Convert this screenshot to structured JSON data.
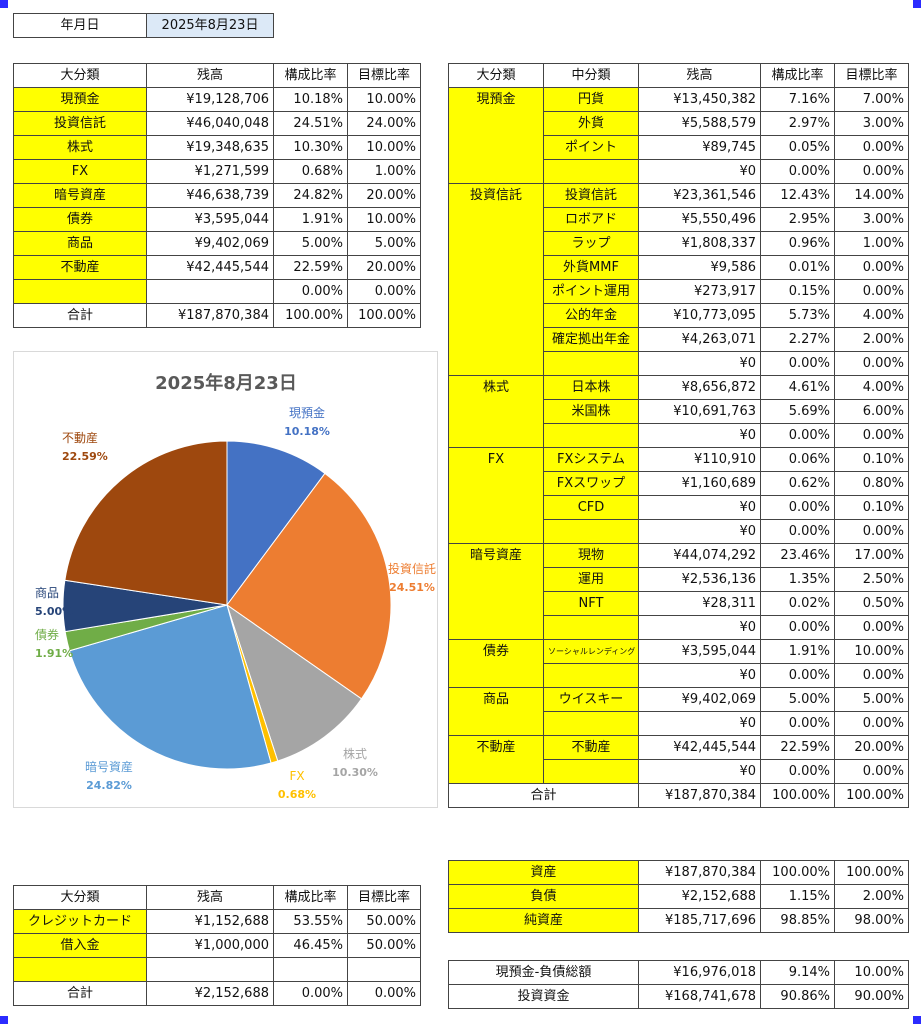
{
  "date_box": {
    "label": "年月日",
    "value": "2025年8月23日"
  },
  "asset_summary": {
    "headers": [
      "大分類",
      "残高",
      "構成比率",
      "目標比率"
    ],
    "rows": [
      [
        "現預金",
        "¥19,128,706",
        "10.18%",
        "10.00%"
      ],
      [
        "投資信託",
        "¥46,040,048",
        "24.51%",
        "24.00%"
      ],
      [
        "株式",
        "¥19,348,635",
        "10.30%",
        "10.00%"
      ],
      [
        "FX",
        "¥1,271,599",
        "0.68%",
        "1.00%"
      ],
      [
        "暗号資産",
        "¥46,638,739",
        "24.82%",
        "20.00%"
      ],
      [
        "債券",
        "¥3,595,044",
        "1.91%",
        "10.00%"
      ],
      [
        "商品",
        "¥9,402,069",
        "5.00%",
        "5.00%"
      ],
      [
        "不動産",
        "¥42,445,544",
        "22.59%",
        "20.00%"
      ],
      [
        "",
        "",
        "0.00%",
        "0.00%"
      ]
    ],
    "total": [
      "合計",
      "¥187,870,384",
      "100.00%",
      "100.00%"
    ]
  },
  "chart_data": {
    "type": "pie",
    "title": "2025年8月23日",
    "slices": [
      {
        "label": "現預金",
        "percent_label": "10.18%",
        "value": 10.18,
        "color": "#4472c4"
      },
      {
        "label": "投資信託",
        "percent_label": "24.51%",
        "value": 24.51,
        "color": "#ed7d31"
      },
      {
        "label": "株式",
        "percent_label": "10.30%",
        "value": 10.3,
        "color": "#a5a5a5"
      },
      {
        "label": "FX",
        "percent_label": "0.68%",
        "value": 0.68,
        "color": "#ffc000"
      },
      {
        "label": "暗号資産",
        "percent_label": "24.82%",
        "value": 24.82,
        "color": "#5b9bd5"
      },
      {
        "label": "債券",
        "percent_label": "1.91%",
        "value": 1.91,
        "color": "#70ad47"
      },
      {
        "label": "商品",
        "percent_label": "5.00%",
        "value": 5.0,
        "color": "#264478"
      },
      {
        "label": "不動産",
        "percent_label": "22.59%",
        "value": 22.59,
        "color": "#9e480e"
      }
    ]
  },
  "liability_summary": {
    "headers": [
      "大分類",
      "残高",
      "構成比率",
      "目標比率"
    ],
    "rows": [
      [
        "クレジットカード",
        "¥1,152,688",
        "53.55%",
        "50.00%"
      ],
      [
        "借入金",
        "¥1,000,000",
        "46.45%",
        "50.00%"
      ],
      [
        "",
        "",
        "",
        ""
      ]
    ],
    "total": [
      "合計",
      "¥2,152,688",
      "0.00%",
      "0.00%"
    ]
  },
  "detail": {
    "headers": [
      "大分類",
      "中分類",
      "残高",
      "構成比率",
      "目標比率"
    ],
    "groups": [
      {
        "name": "現預金",
        "rows": [
          [
            "円貨",
            "¥13,450,382",
            "7.16%",
            "7.00%"
          ],
          [
            "外貨",
            "¥5,588,579",
            "2.97%",
            "3.00%"
          ],
          [
            "ポイント",
            "¥89,745",
            "0.05%",
            "0.00%"
          ],
          [
            "",
            "¥0",
            "0.00%",
            "0.00%"
          ]
        ]
      },
      {
        "name": "投資信託",
        "rows": [
          [
            "投資信託",
            "¥23,361,546",
            "12.43%",
            "14.00%"
          ],
          [
            "ロボアド",
            "¥5,550,496",
            "2.95%",
            "3.00%"
          ],
          [
            "ラップ",
            "¥1,808,337",
            "0.96%",
            "1.00%"
          ],
          [
            "外貨MMF",
            "¥9,586",
            "0.01%",
            "0.00%"
          ],
          [
            "ポイント運用",
            "¥273,917",
            "0.15%",
            "0.00%"
          ],
          [
            "公的年金",
            "¥10,773,095",
            "5.73%",
            "4.00%"
          ],
          [
            "確定拠出年金",
            "¥4,263,071",
            "2.27%",
            "2.00%"
          ],
          [
            "",
            "¥0",
            "0.00%",
            "0.00%"
          ]
        ]
      },
      {
        "name": "株式",
        "rows": [
          [
            "日本株",
            "¥8,656,872",
            "4.61%",
            "4.00%"
          ],
          [
            "米国株",
            "¥10,691,763",
            "5.69%",
            "6.00%"
          ],
          [
            "",
            "¥0",
            "0.00%",
            "0.00%"
          ]
        ]
      },
      {
        "name": "FX",
        "rows": [
          [
            "FXシステム",
            "¥110,910",
            "0.06%",
            "0.10%"
          ],
          [
            "FXスワップ",
            "¥1,160,689",
            "0.62%",
            "0.80%"
          ],
          [
            "CFD",
            "¥0",
            "0.00%",
            "0.10%"
          ],
          [
            "",
            "¥0",
            "0.00%",
            "0.00%"
          ]
        ]
      },
      {
        "name": "暗号資産",
        "rows": [
          [
            "現物",
            "¥44,074,292",
            "23.46%",
            "17.00%"
          ],
          [
            "運用",
            "¥2,536,136",
            "1.35%",
            "2.50%"
          ],
          [
            "NFT",
            "¥28,311",
            "0.02%",
            "0.50%"
          ],
          [
            "",
            "¥0",
            "0.00%",
            "0.00%"
          ]
        ]
      },
      {
        "name": "債券",
        "rows": [
          [
            "ソーシャルレンディング",
            "¥3,595,044",
            "1.91%",
            "10.00%"
          ],
          [
            "",
            "¥0",
            "0.00%",
            "0.00%"
          ]
        ]
      },
      {
        "name": "商品",
        "rows": [
          [
            "ウイスキー",
            "¥9,402,069",
            "5.00%",
            "5.00%"
          ],
          [
            "",
            "¥0",
            "0.00%",
            "0.00%"
          ]
        ]
      },
      {
        "name": "不動産",
        "rows": [
          [
            "不動産",
            "¥42,445,544",
            "22.59%",
            "20.00%"
          ],
          [
            "",
            "¥0",
            "0.00%",
            "0.00%"
          ]
        ]
      }
    ],
    "total": [
      "合計",
      "¥187,870,384",
      "100.00%",
      "100.00%"
    ]
  },
  "balance": {
    "rows": [
      [
        "資産",
        "¥187,870,384",
        "100.00%",
        "100.00%"
      ],
      [
        "負債",
        "¥2,152,688",
        "1.15%",
        "2.00%"
      ],
      [
        "純資産",
        "¥185,717,696",
        "98.85%",
        "98.00%"
      ]
    ]
  },
  "allocation": {
    "rows": [
      [
        "現預金-負債総額",
        "¥16,976,018",
        "9.14%",
        "10.00%"
      ],
      [
        "投資資金",
        "¥168,741,678",
        "90.86%",
        "90.00%"
      ]
    ]
  }
}
